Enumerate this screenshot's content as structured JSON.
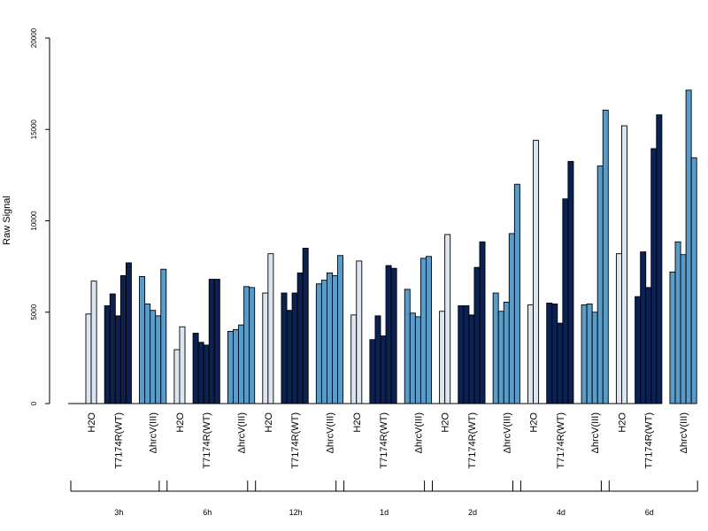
{
  "chart_data": {
    "type": "bar",
    "ylabel": "Raw Signal",
    "ylim": [
      0,
      20000
    ],
    "yticks": [
      0,
      5000,
      10000,
      15000,
      20000
    ],
    "group_labels": [
      "H2O",
      "T7174R(WT)",
      "ΔhrcV(III)"
    ],
    "group_colors": [
      "#dce6f2",
      "#0b2151",
      "#5b9bc8"
    ],
    "time_points": [
      {
        "label": "3h",
        "groups": [
          [
            4900,
            6700
          ],
          [
            5350,
            6000,
            4800,
            7000,
            7700
          ],
          [
            6950,
            5450,
            5100,
            4800,
            7350
          ]
        ]
      },
      {
        "label": "6h",
        "groups": [
          [
            2950,
            4200
          ],
          [
            3850,
            3350,
            3200,
            6800,
            6800
          ],
          [
            3950,
            4050,
            4300,
            6400,
            6350
          ]
        ]
      },
      {
        "label": "12h",
        "groups": [
          [
            6050,
            8200
          ],
          [
            6050,
            5100,
            6050,
            7150,
            8500
          ],
          [
            6550,
            6750,
            7150,
            7000,
            8100
          ]
        ]
      },
      {
        "label": "1d",
        "groups": [
          [
            4850,
            7800
          ],
          [
            3500,
            4800,
            3700,
            7550,
            7400
          ],
          [
            6250,
            4950,
            4750,
            7950,
            8050
          ]
        ]
      },
      {
        "label": "2d",
        "groups": [
          [
            5050,
            9250
          ],
          [
            5350,
            5350,
            4850,
            7450,
            8850
          ],
          [
            6050,
            5050,
            5550,
            9300,
            12000
          ]
        ]
      },
      {
        "label": "4d",
        "groups": [
          [
            5400,
            14400
          ],
          [
            5500,
            5450,
            4400,
            11200,
            13250
          ],
          [
            5400,
            5450,
            5000,
            13000,
            16050
          ]
        ]
      },
      {
        "label": "6d",
        "groups": [
          [
            8200,
            15200
          ],
          [
            5850,
            8300,
            6350,
            13950,
            15800
          ],
          [
            7200,
            8850,
            8150,
            17150,
            13450
          ]
        ]
      }
    ]
  }
}
